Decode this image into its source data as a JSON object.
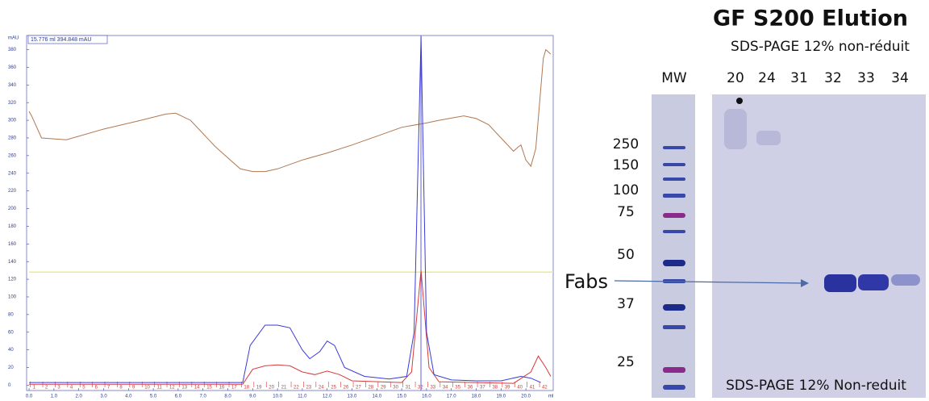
{
  "chart_data": {
    "type": "line",
    "annotation": "15.776 ml 394.848 mAU",
    "cursor_x": 15.776,
    "y_unit": "mAU",
    "x_unit": "ml",
    "xlim": [
      -0.1,
      21.1
    ],
    "ylim": [
      -6,
      396
    ],
    "xticks": [
      {
        "value": 0,
        "label": "0.0"
      },
      {
        "value": 1,
        "label": "1.0"
      },
      {
        "value": 2,
        "label": "2.0"
      },
      {
        "value": 3,
        "label": "3.0"
      },
      {
        "value": 4,
        "label": "4.0"
      },
      {
        "value": 5,
        "label": "5.0"
      },
      {
        "value": 6,
        "label": "6.0"
      },
      {
        "value": 7,
        "label": "7.0"
      },
      {
        "value": 8,
        "label": "8.0"
      },
      {
        "value": 9,
        "label": "9.0"
      },
      {
        "value": 10,
        "label": "10.0"
      },
      {
        "value": 11,
        "label": "11.0"
      },
      {
        "value": 12,
        "label": "12.0"
      },
      {
        "value": 13,
        "label": "13.0"
      },
      {
        "value": 14,
        "label": "14.0"
      },
      {
        "value": 15,
        "label": "15.0"
      },
      {
        "value": 16,
        "label": "16.0"
      },
      {
        "value": 17,
        "label": "17.0"
      },
      {
        "value": 18,
        "label": "18.0"
      },
      {
        "value": 19,
        "label": "19.0"
      },
      {
        "value": 20,
        "label": "20.0"
      }
    ],
    "yticks": [
      0,
      20,
      40,
      60,
      80,
      100,
      120,
      140,
      160,
      180,
      200,
      220,
      240,
      260,
      280,
      300,
      320,
      340,
      360,
      380
    ],
    "fractions": [
      {
        "value": 0.05,
        "label": "1"
      },
      {
        "value": 0.55,
        "label": "2"
      },
      {
        "value": 1.05,
        "label": "3"
      },
      {
        "value": 1.55,
        "label": "4"
      },
      {
        "value": 2.05,
        "label": "5"
      },
      {
        "value": 2.55,
        "label": "6"
      },
      {
        "value": 3.05,
        "label": "7"
      },
      {
        "value": 3.55,
        "label": "8"
      },
      {
        "value": 4.05,
        "label": "9"
      },
      {
        "value": 4.55,
        "label": "10"
      },
      {
        "value": 5.05,
        "label": "11"
      },
      {
        "value": 5.55,
        "label": "12"
      },
      {
        "value": 6.05,
        "label": "13"
      },
      {
        "value": 6.55,
        "label": "14"
      },
      {
        "value": 7.05,
        "label": "15"
      },
      {
        "value": 7.55,
        "label": "16"
      },
      {
        "value": 8.05,
        "label": "17"
      },
      {
        "value": 8.55,
        "label": "18"
      },
      {
        "value": 9.05,
        "label": "19"
      },
      {
        "value": 9.55,
        "label": "20"
      },
      {
        "value": 10.05,
        "label": "21"
      },
      {
        "value": 10.55,
        "label": "22"
      },
      {
        "value": 11.05,
        "label": "23"
      },
      {
        "value": 11.55,
        "label": "24"
      },
      {
        "value": 12.05,
        "label": "25"
      },
      {
        "value": 12.55,
        "label": "26"
      },
      {
        "value": 13.05,
        "label": "27"
      },
      {
        "value": 13.55,
        "label": "28"
      },
      {
        "value": 14.05,
        "label": "29"
      },
      {
        "value": 14.55,
        "label": "30"
      },
      {
        "value": 15.05,
        "label": "31"
      },
      {
        "value": 15.55,
        "label": "32"
      },
      {
        "value": 16.05,
        "label": "33"
      },
      {
        "value": 16.55,
        "label": "34"
      },
      {
        "value": 17.05,
        "label": "35"
      },
      {
        "value": 17.55,
        "label": "36"
      },
      {
        "value": 18.05,
        "label": "37"
      },
      {
        "value": 18.55,
        "label": "38"
      },
      {
        "value": 19.05,
        "label": "39"
      },
      {
        "value": 19.55,
        "label": "40"
      },
      {
        "value": 20.05,
        "label": "41"
      },
      {
        "value": 20.55,
        "label": "42"
      }
    ],
    "series": [
      {
        "color": "#b07850",
        "x": [
          0,
          0.1,
          0.5,
          1.5,
          3,
          4.5,
          5.5,
          5.9,
          6.5,
          7.5,
          8.5,
          9,
          9.5,
          10,
          11,
          12,
          13,
          14,
          15,
          16,
          16.5,
          17.5,
          18,
          18.5,
          19,
          19.5,
          19.7,
          19.8,
          20,
          20.2,
          20.4,
          20.7,
          20.8,
          21
        ],
        "values": [
          310,
          305,
          280,
          278,
          290,
          300,
          307,
          308,
          300,
          270,
          245,
          242,
          242,
          245,
          255,
          263,
          272,
          282,
          292,
          297,
          300,
          305,
          302,
          295,
          280,
          265,
          270,
          272,
          255,
          248,
          268,
          370,
          380,
          375
        ]
      },
      {
        "color": "#e8ec8c",
        "x": [
          0,
          21.1
        ],
        "values": [
          128,
          128
        ]
      },
      {
        "color": "#d83a3a",
        "x": [
          0,
          8.6,
          9,
          9.5,
          10,
          10.5,
          11,
          11.5,
          12,
          12.5,
          13,
          15,
          15.4,
          15.78,
          16.1,
          16.5,
          19.5,
          20.2,
          20.5,
          20.8,
          21
        ],
        "values": [
          1,
          1,
          18,
          22,
          23,
          22,
          15,
          12,
          16,
          12,
          5,
          3,
          15,
          130,
          20,
          4,
          2,
          15,
          33,
          20,
          10
        ]
      },
      {
        "color": "#3a3ad8",
        "x": [
          0,
          8.6,
          8.9,
          9.5,
          10,
          10.5,
          11,
          11.3,
          11.7,
          12,
          12.3,
          12.7,
          13.5,
          14.5,
          15.2,
          15.5,
          15.78,
          16,
          16.3,
          17,
          18,
          19,
          19.8,
          20.2,
          20.6
        ],
        "values": [
          3,
          3,
          45,
          68,
          68,
          65,
          40,
          30,
          38,
          50,
          45,
          20,
          10,
          7,
          10,
          60,
          395,
          60,
          12,
          6,
          5,
          5,
          10,
          8,
          3
        ]
      }
    ]
  },
  "gel": {
    "title": "GF S200 Elution",
    "subtitle": "SDS-PAGE 12% non-réduit",
    "ladder_label": "MW",
    "lanes": [
      "20",
      "24",
      "31",
      "32",
      "33",
      "34"
    ],
    "markers": [
      "250",
      "150",
      "100",
      "75",
      "50",
      "37",
      "25"
    ],
    "arrow_label": "Fabs",
    "footer": "SDS-PAGE 12% Non-reduit"
  }
}
